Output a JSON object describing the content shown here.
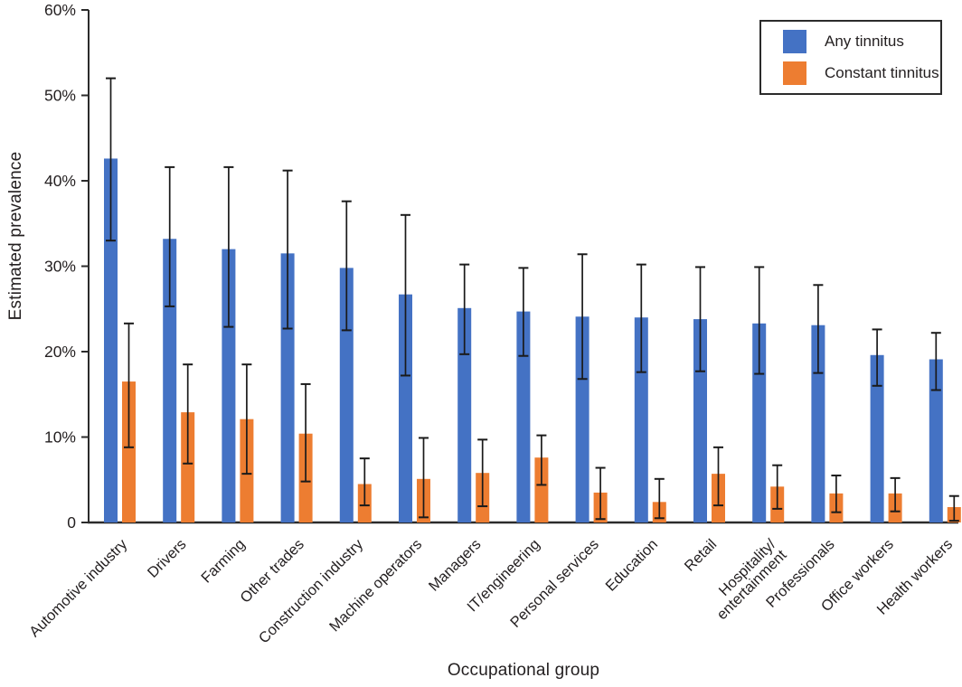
{
  "chart_data": {
    "type": "bar",
    "title": "",
    "xlabel": "Occupational group",
    "ylabel": "Estimated prevalence",
    "ylim": [
      0,
      60
    ],
    "ytick_values": [
      0,
      10,
      20,
      30,
      40,
      50,
      60
    ],
    "ytick_labels": [
      "0",
      "10%",
      "20%",
      "30%",
      "40%",
      "50%",
      "60%"
    ],
    "grid": false,
    "error_bars": true,
    "legend_position": "top-right",
    "categories": [
      "Automotive industry",
      "Drivers",
      "Farming",
      "Other trades",
      "Construction industry",
      "Machine operators",
      "Managers",
      "IT/engineering",
      "Personal services",
      "Education",
      "Retail",
      "Hospitality/\nentertainment",
      "Professionals",
      "Office workers",
      "Health workers"
    ],
    "series": [
      {
        "name": "Any tinnitus",
        "color": "#4472c4",
        "values": [
          42.6,
          33.2,
          32.0,
          31.5,
          29.8,
          26.7,
          25.1,
          24.7,
          24.1,
          24.0,
          23.8,
          23.3,
          23.1,
          19.6,
          19.1
        ],
        "ci_low": [
          33.0,
          25.3,
          22.9,
          22.7,
          22.5,
          17.2,
          19.7,
          19.5,
          16.8,
          17.6,
          17.7,
          17.4,
          17.5,
          16.0,
          15.5
        ],
        "ci_high": [
          52.0,
          41.6,
          41.6,
          41.2,
          37.6,
          36.0,
          30.2,
          29.8,
          31.4,
          30.2,
          29.9,
          29.9,
          27.8,
          22.6,
          22.2
        ]
      },
      {
        "name": "Constant tinnitus",
        "color": "#ed7d31",
        "values": [
          16.5,
          12.9,
          12.1,
          10.4,
          4.5,
          5.1,
          5.8,
          7.6,
          3.5,
          2.4,
          5.7,
          4.2,
          3.4,
          3.4,
          1.8
        ],
        "ci_low": [
          8.8,
          6.9,
          5.7,
          4.8,
          2.0,
          0.6,
          1.9,
          4.4,
          0.4,
          0.5,
          2.0,
          1.6,
          1.2,
          1.3,
          0.2
        ],
        "ci_high": [
          23.3,
          18.5,
          18.5,
          16.2,
          7.5,
          9.9,
          9.7,
          10.2,
          6.4,
          5.1,
          8.8,
          6.7,
          5.5,
          5.2,
          3.1
        ]
      }
    ],
    "axis_color": "#2b2b2b",
    "error_bar_color": "#1a1a1a",
    "tick_label_color": "#231f20",
    "category_label_color": "#231f20"
  }
}
